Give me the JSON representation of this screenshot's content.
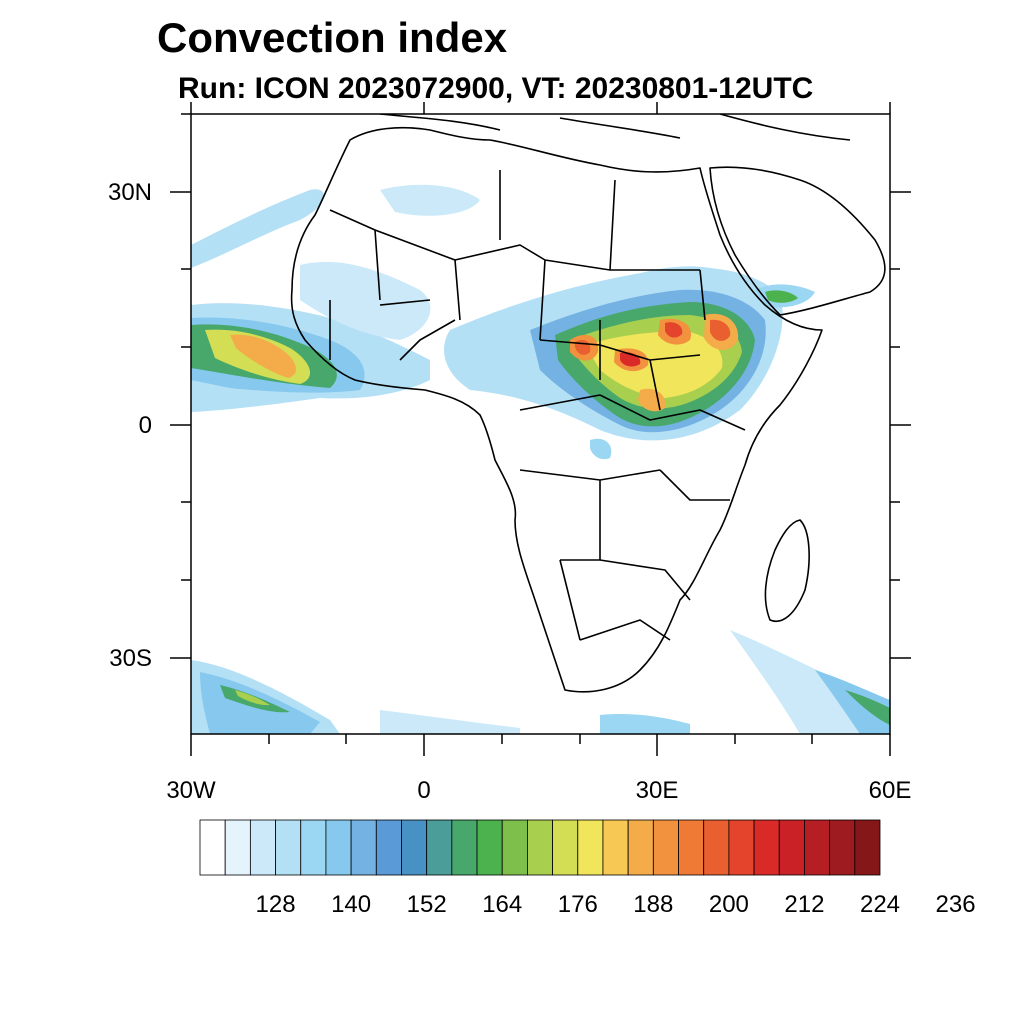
{
  "title": "Convection index",
  "subtitle": "Run: ICON 2023072900,  VT: 20230801-12UTC",
  "chart_data": {
    "type": "heatmap",
    "title": "Convection index",
    "subtitle": "Run: ICON 2023072900,  VT: 20230801-12UTC",
    "lon_range": [
      -30,
      60
    ],
    "lat_range": [
      -40,
      40
    ],
    "x_ticks": [
      "30W",
      "0",
      "30E",
      "60E"
    ],
    "y_ticks": [
      "30N",
      "0",
      "30S"
    ],
    "colorbar_labels": [
      "128",
      "140",
      "152",
      "164",
      "176",
      "188",
      "200",
      "212",
      "224",
      "236"
    ],
    "colorbar_colors": [
      "#ffffff",
      "#e4f3fc",
      "#cbe9f8",
      "#b4e0f6",
      "#9bd6f3",
      "#86c8ee",
      "#74b2e4",
      "#5a9ad6",
      "#4791c4",
      "#4a9d98",
      "#48a86c",
      "#4cb24e",
      "#7dbf4a",
      "#a9cf4f",
      "#d3de54",
      "#f1e55b",
      "#f7c853",
      "#f4ab49",
      "#f2923f",
      "#ee7a36",
      "#ea5f2f",
      "#e4442b",
      "#d92a28",
      "#c92125",
      "#b51f24",
      "#9e1c20",
      "#851719"
    ]
  }
}
